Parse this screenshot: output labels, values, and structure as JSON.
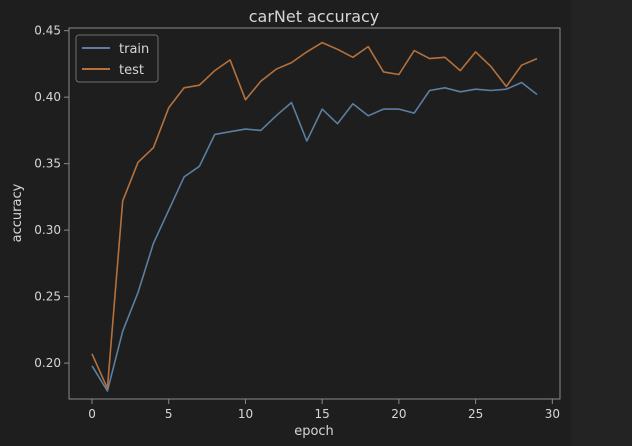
{
  "chart_data": {
    "type": "line",
    "title": "carNet accuracy",
    "xlabel": "epoch",
    "ylabel": "accuracy",
    "xlim": [
      -1.5,
      30.5
    ],
    "ylim": [
      0.173,
      0.452
    ],
    "x_ticks": [
      0,
      5,
      10,
      15,
      20,
      25,
      30
    ],
    "y_ticks": [
      0.2,
      0.25,
      0.3,
      0.35,
      0.4,
      0.45
    ],
    "x_tick_labels": [
      "0",
      "5",
      "10",
      "15",
      "20",
      "25",
      "30"
    ],
    "y_tick_labels": [
      "0.20",
      "0.25",
      "0.30",
      "0.35",
      "0.40",
      "0.45"
    ],
    "grid": false,
    "legend_placement": "top-left",
    "x": [
      0,
      1,
      2,
      3,
      4,
      5,
      6,
      7,
      8,
      9,
      10,
      11,
      12,
      13,
      14,
      15,
      16,
      17,
      18,
      19,
      20,
      21,
      22,
      23,
      24,
      25,
      26,
      27,
      28,
      29
    ],
    "series": [
      {
        "name": "train",
        "color": "#5a7fa0",
        "values": [
          0.198,
          0.179,
          0.224,
          0.253,
          0.29,
          0.315,
          0.34,
          0.348,
          0.372,
          0.374,
          0.376,
          0.375,
          0.386,
          0.396,
          0.367,
          0.391,
          0.38,
          0.395,
          0.386,
          0.391,
          0.391,
          0.388,
          0.405,
          0.407,
          0.404,
          0.406,
          0.405,
          0.406,
          0.411,
          0.402
        ]
      },
      {
        "name": "test",
        "color": "#b5713c",
        "values": [
          0.207,
          0.181,
          0.322,
          0.351,
          0.362,
          0.392,
          0.407,
          0.409,
          0.42,
          0.428,
          0.398,
          0.412,
          0.421,
          0.426,
          0.434,
          0.441,
          0.436,
          0.43,
          0.438,
          0.419,
          0.417,
          0.435,
          0.429,
          0.43,
          0.42,
          0.434,
          0.423,
          0.408,
          0.424,
          0.429
        ]
      }
    ]
  }
}
